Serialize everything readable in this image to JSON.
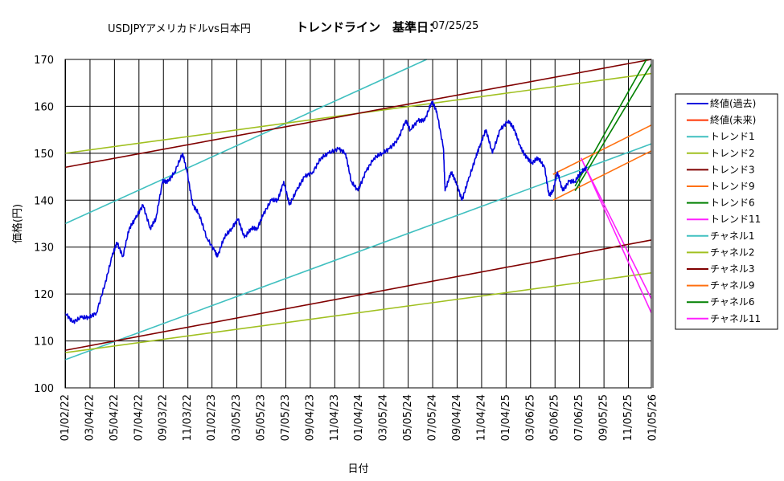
{
  "chart_data": {
    "type": "line",
    "title": {
      "part1": "USDJPYアメリカドルvs日本円",
      "part2": "トレンドライン　基準日：",
      "part3": "07/25/25"
    },
    "xlabel": "日付",
    "ylabel": "価格(円)",
    "ylim": [
      100,
      170
    ],
    "yticks": [
      100,
      110,
      120,
      130,
      140,
      150,
      160,
      170
    ],
    "xlim": [
      "2022-01-01",
      "2026-01-01"
    ],
    "xticks": [
      "01/02/22",
      "03/04/22",
      "05/04/22",
      "07/04/22",
      "09/03/22",
      "11/03/22",
      "01/02/23",
      "03/05/23",
      "05/05/23",
      "07/05/23",
      "09/04/23",
      "11/04/23",
      "01/04/24",
      "03/05/24",
      "05/05/24",
      "07/05/24",
      "09/04/24",
      "11/04/24",
      "01/04/25",
      "03/06/25",
      "05/06/25",
      "07/06/25",
      "09/05/25",
      "11/05/25",
      "01/05/26"
    ],
    "grid": true,
    "legend_position": "right",
    "series": [
      {
        "name": "終値(過去)",
        "color": "#0000dd",
        "kind": "price",
        "x": [
          "2022-01-01",
          "2022-01-20",
          "2022-02-10",
          "2022-03-01",
          "2022-03-20",
          "2022-04-10",
          "2022-04-28",
          "2022-05-10",
          "2022-05-25",
          "2022-06-10",
          "2022-06-25",
          "2022-07-14",
          "2022-08-01",
          "2022-08-15",
          "2022-09-01",
          "2022-09-15",
          "2022-10-01",
          "2022-10-21",
          "2022-11-01",
          "2022-11-15",
          "2022-12-01",
          "2022-12-20",
          "2023-01-10",
          "2023-01-16",
          "2023-02-01",
          "2023-02-20",
          "2023-03-08",
          "2023-03-24",
          "2023-04-10",
          "2023-04-25",
          "2023-05-10",
          "2023-05-30",
          "2023-06-15",
          "2023-06-30",
          "2023-07-14",
          "2023-08-01",
          "2023-08-20",
          "2023-09-10",
          "2023-10-01",
          "2023-10-20",
          "2023-11-13",
          "2023-12-01",
          "2023-12-15",
          "2024-01-01",
          "2024-01-20",
          "2024-02-10",
          "2024-03-01",
          "2024-03-20",
          "2024-04-10",
          "2024-04-29",
          "2024-05-10",
          "2024-05-30",
          "2024-06-15",
          "2024-07-03",
          "2024-07-15",
          "2024-08-01",
          "2024-08-05",
          "2024-08-20",
          "2024-09-01",
          "2024-09-16",
          "2024-10-01",
          "2024-10-20",
          "2024-11-01",
          "2024-11-15",
          "2024-12-01",
          "2024-12-20",
          "2025-01-10",
          "2025-01-25",
          "2025-02-10",
          "2025-02-25",
          "2025-03-10",
          "2025-03-25",
          "2025-04-10",
          "2025-04-21",
          "2025-05-01",
          "2025-05-12",
          "2025-05-25",
          "2025-06-10",
          "2025-06-25",
          "2025-07-10",
          "2025-07-25"
        ],
        "y": [
          116,
          114,
          115,
          115,
          116,
          122,
          128,
          131,
          128,
          134,
          136,
          139,
          134,
          136,
          144,
          144,
          146,
          150,
          146,
          139,
          137,
          132,
          129,
          128,
          132,
          134,
          136,
          132,
          134,
          134,
          137,
          140,
          140,
          144,
          139,
          142,
          145,
          146,
          149,
          150,
          151,
          150,
          144,
          142,
          146,
          149,
          150,
          151,
          153,
          157,
          155,
          157,
          157,
          161,
          159,
          151,
          142,
          146,
          144,
          140,
          144,
          149,
          152,
          155,
          150,
          155,
          157,
          155,
          151,
          149,
          148,
          149,
          147,
          141,
          142,
          146,
          142,
          144,
          144,
          146,
          147
        ]
      },
      {
        "name": "終値(未来)",
        "color": "#ff3300",
        "kind": "line",
        "x": [],
        "y": []
      },
      {
        "name": "トレンド1",
        "color": "#40c0c0",
        "kind": "line",
        "x": [
          "2022-01-01",
          "2024-06-20"
        ],
        "y": [
          135,
          170
        ]
      },
      {
        "name": "トレンド2",
        "color": "#a0c020",
        "kind": "line",
        "x": [
          "2022-01-01",
          "2026-01-01"
        ],
        "y": [
          150,
          167
        ]
      },
      {
        "name": "トレンド3",
        "color": "#800000",
        "kind": "line",
        "x": [
          "2022-01-01",
          "2026-01-01"
        ],
        "y": [
          147,
          170
        ]
      },
      {
        "name": "トレンド9",
        "color": "#ff7010",
        "kind": "line",
        "x": [
          "2025-05-01",
          "2026-01-01"
        ],
        "y": [
          140,
          150.5
        ]
      },
      {
        "name": "トレンド6",
        "color": "#008000",
        "kind": "line",
        "x": [
          "2025-06-25",
          "2025-12-20"
        ],
        "y": [
          143,
          170
        ]
      },
      {
        "name": "トレンド11",
        "color": "#ff20ff",
        "kind": "line",
        "x": [
          "2025-07-15",
          "2026-01-01"
        ],
        "y": [
          148,
          119
        ]
      },
      {
        "name": "チャネル1",
        "color": "#40c0c0",
        "kind": "line",
        "x": [
          "2022-01-01",
          "2026-01-01"
        ],
        "y": [
          106,
          152
        ]
      },
      {
        "name": "チャネル2",
        "color": "#a0c020",
        "kind": "line",
        "x": [
          "2022-01-01",
          "2026-01-01"
        ],
        "y": [
          107.5,
          124.5
        ]
      },
      {
        "name": "チャネル3",
        "color": "#800000",
        "kind": "line",
        "x": [
          "2022-01-01",
          "2026-01-01"
        ],
        "y": [
          108,
          131.5
        ]
      },
      {
        "name": "チャネル9",
        "color": "#ff7010",
        "kind": "line",
        "x": [
          "2025-05-01",
          "2026-01-01"
        ],
        "y": [
          145.5,
          156
        ]
      },
      {
        "name": "チャネル6",
        "color": "#008000",
        "kind": "line",
        "x": [
          "2025-06-25",
          "2026-01-01"
        ],
        "y": [
          142,
          169
        ]
      },
      {
        "name": "チャネル11",
        "color": "#ff20ff",
        "kind": "line",
        "x": [
          "2025-07-10",
          "2026-01-01"
        ],
        "y": [
          149,
          116
        ]
      }
    ]
  }
}
